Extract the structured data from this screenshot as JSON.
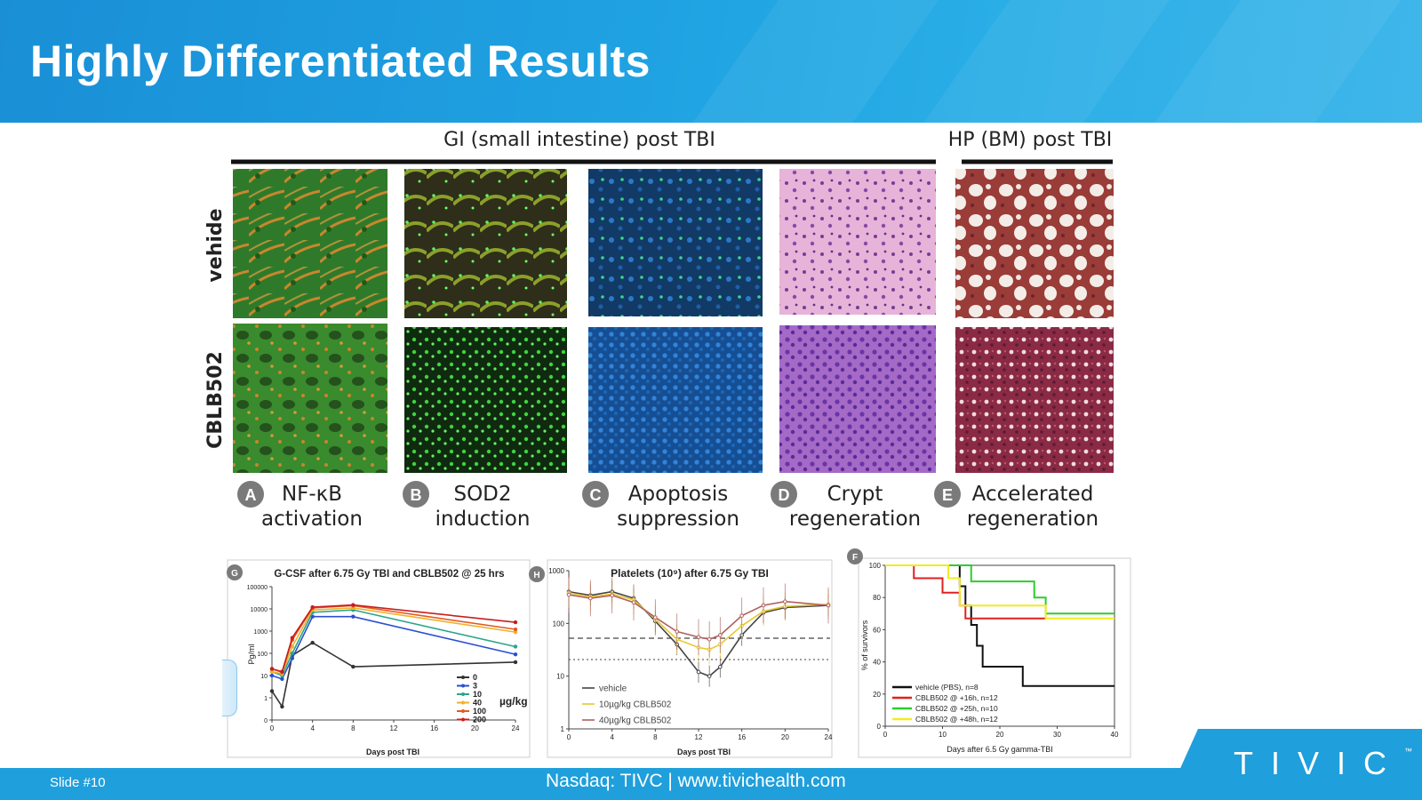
{
  "header": {
    "title": "Highly Differentiated Results"
  },
  "figure": {
    "section_gi": "GI (small intestine) post TBI",
    "section_hp": "HP (BM) post TBI",
    "row_labels": [
      "vehide",
      "CBLB502"
    ],
    "panels": [
      {
        "letter": "A",
        "line1": "NF-κB",
        "line2": "activation"
      },
      {
        "letter": "B",
        "line1": "SOD2",
        "line2": "induction"
      },
      {
        "letter": "C",
        "line1": "Apoptosis",
        "line2": "suppression"
      },
      {
        "letter": "D",
        "line1": "Crypt",
        "line2": "regeneration"
      },
      {
        "letter": "E",
        "line1": "Accelerated",
        "line2": "regeneration"
      }
    ]
  },
  "charts": {
    "gcsf": {
      "letter": "G",
      "title": "G-CSF after 6.75 Gy TBI and CBLB502 @ 25 hrs",
      "ylabel": "Pg/ml",
      "xlabel": "Days post TBI",
      "yticks": [
        "100000",
        "10000",
        "1000",
        "100",
        "10",
        "1",
        "0"
      ],
      "xticks": [
        "0",
        "4",
        "8",
        "12",
        "16",
        "20",
        "24"
      ],
      "legend": [
        "0",
        "3",
        "10",
        "40",
        "100",
        "200"
      ],
      "unit": "µg/kg"
    },
    "platelets": {
      "letter": "H",
      "title": "Platelets (10⁹) after 6.75 Gy TBI",
      "xlabel": "Days post TBI",
      "yticks": [
        "1000",
        "100",
        "10",
        "1"
      ],
      "xticks": [
        "0",
        "4",
        "8",
        "12",
        "16",
        "20",
        "24"
      ],
      "legend": [
        "vehicle",
        "10µg/kg CBLB502",
        "40µg/kg CBLB502"
      ]
    },
    "survival": {
      "letter": "F",
      "ylabel": "% of survivors",
      "xlabel": "Days after 6.5 Gy gamma-TBI",
      "yticks": [
        "100",
        "80",
        "60",
        "40",
        "20",
        "0"
      ],
      "xticks": [
        "0",
        "10",
        "20",
        "30",
        "40"
      ],
      "legend": [
        "vehicle (PBS), n=8",
        "CBLB502 @ +16h, n=12",
        "CBLB502 @ +25h, n=10",
        "CBLB502 @ +48h, n=12"
      ]
    }
  },
  "chart_data": [
    {
      "type": "line",
      "title": "G-CSF after 6.75 Gy TBI and CBLB502 @ 25 hrs",
      "xlabel": "Days post TBI",
      "ylabel": "Pg/ml",
      "y_scale": "log",
      "ylim": [
        0.1,
        100000
      ],
      "xlim": [
        0,
        24
      ],
      "x": [
        0,
        1,
        2,
        4,
        8,
        24
      ],
      "series": [
        {
          "name": "0",
          "color": "#333333",
          "values": [
            2,
            0.4,
            80,
            300,
            25,
            40
          ]
        },
        {
          "name": "3",
          "color": "#2a4fd0",
          "values": [
            10,
            7,
            60,
            4500,
            4500,
            90
          ]
        },
        {
          "name": "10",
          "color": "#2aa58a",
          "values": [
            15,
            10,
            100,
            7000,
            9000,
            200
          ]
        },
        {
          "name": "40",
          "color": "#f0b12a",
          "values": [
            15,
            12,
            200,
            9000,
            11000,
            900
          ]
        },
        {
          "name": "100",
          "color": "#e65a1e",
          "values": [
            20,
            14,
            400,
            11000,
            14000,
            1200
          ]
        },
        {
          "name": "200",
          "color": "#c81e1e",
          "values": [
            20,
            15,
            500,
            12000,
            15000,
            2500
          ]
        }
      ]
    },
    {
      "type": "line",
      "title": "Platelets (10⁹) after 6.75 Gy TBI",
      "xlabel": "Days post TBI",
      "y_scale": "log",
      "ylim": [
        1,
        1000
      ],
      "xlim": [
        0,
        24
      ],
      "x": [
        0,
        2,
        4,
        6,
        8,
        10,
        12,
        13,
        14,
        16,
        18,
        20,
        24
      ],
      "series": [
        {
          "name": "vehicle",
          "color": "#444444",
          "values": [
            400,
            340,
            400,
            300,
            110,
            40,
            12,
            10,
            15,
            60,
            160,
            200,
            220
          ]
        },
        {
          "name": "10µg/kg CBLB502",
          "color": "#e8c830",
          "values": [
            380,
            320,
            360,
            280,
            120,
            50,
            35,
            32,
            40,
            90,
            170,
            210,
            230
          ]
        },
        {
          "name": "40µg/kg CBLB502",
          "color": "#b06060",
          "values": [
            350,
            300,
            340,
            250,
            130,
            70,
            55,
            50,
            60,
            140,
            220,
            260,
            220
          ]
        }
      ]
    },
    {
      "type": "line",
      "step": true,
      "xlabel": "Days after 6.5 Gy gamma-TBI",
      "ylabel": "% of survivors",
      "ylim": [
        0,
        100
      ],
      "xlim": [
        0,
        40
      ],
      "series": [
        {
          "name": "vehicle (PBS), n=8",
          "color": "#111111",
          "points": [
            [
              0,
              100
            ],
            [
              13,
              100
            ],
            [
              13,
              87
            ],
            [
              14,
              87
            ],
            [
              14,
              75
            ],
            [
              15,
              75
            ],
            [
              15,
              63
            ],
            [
              16,
              63
            ],
            [
              16,
              50
            ],
            [
              17,
              50
            ],
            [
              17,
              37
            ],
            [
              24,
              37
            ],
            [
              24,
              25
            ],
            [
              40,
              25
            ]
          ]
        },
        {
          "name": "CBLB502 @ +16h, n=12",
          "color": "#e02020",
          "points": [
            [
              0,
              100
            ],
            [
              5,
              100
            ],
            [
              5,
              92
            ],
            [
              10,
              92
            ],
            [
              10,
              83
            ],
            [
              13,
              83
            ],
            [
              13,
              75
            ],
            [
              14,
              75
            ],
            [
              14,
              67
            ],
            [
              28,
              67
            ]
          ]
        },
        {
          "name": "CBLB502 @ +25h, n=10",
          "color": "#2ecc2e",
          "points": [
            [
              0,
              100
            ],
            [
              15,
              100
            ],
            [
              15,
              90
            ],
            [
              26,
              90
            ],
            [
              26,
              80
            ],
            [
              28,
              80
            ],
            [
              28,
              70
            ],
            [
              40,
              70
            ]
          ]
        },
        {
          "name": "CBLB502 @ +48h, n=12",
          "color": "#f2ec20",
          "points": [
            [
              0,
              100
            ],
            [
              11,
              100
            ],
            [
              11,
              92
            ],
            [
              13,
              92
            ],
            [
              13,
              75
            ],
            [
              28,
              75
            ],
            [
              28,
              67
            ],
            [
              40,
              67
            ]
          ]
        }
      ]
    }
  ],
  "footer": {
    "slide": "Slide #10",
    "text": "Nasdaq: TIVC  | www.tivichealth.com",
    "logo": "TIVIC",
    "tm": "™"
  }
}
